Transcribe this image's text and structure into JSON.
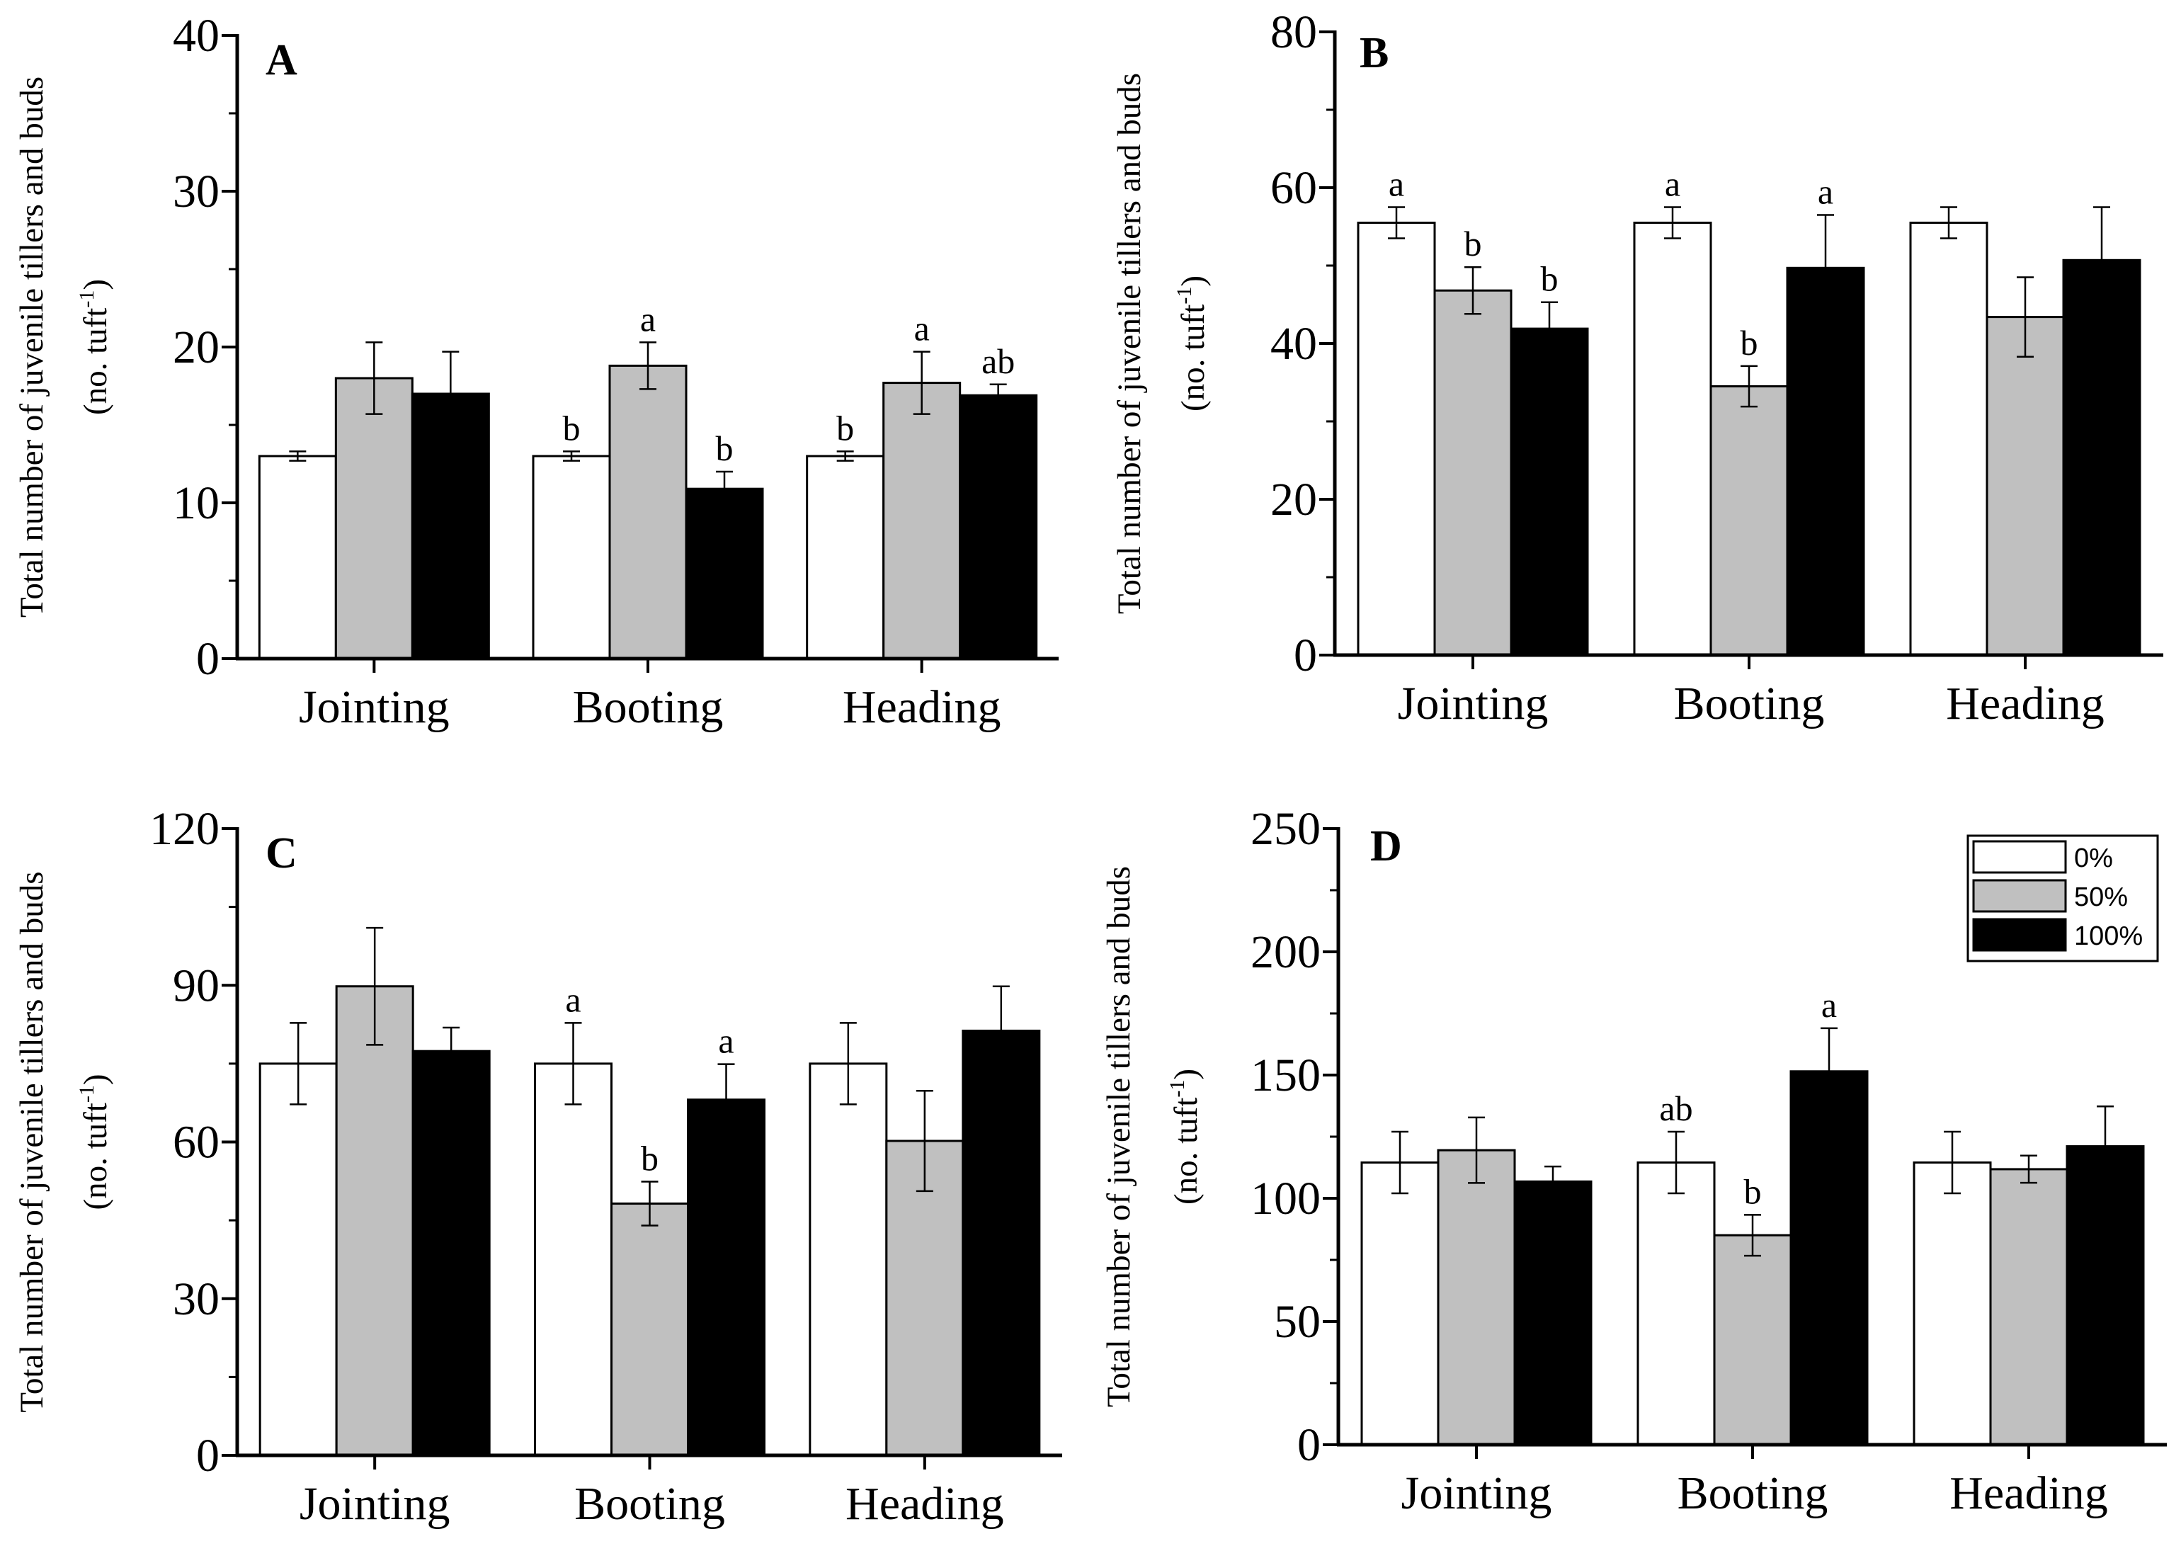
{
  "colors": {
    "series_0": "#ffffff",
    "series_50": "#c0c0c0",
    "series_100": "#000000",
    "axis": "#000000"
  },
  "legend": {
    "entries": [
      "0%",
      "50%",
      "100%"
    ]
  },
  "chart_data": [
    {
      "panel": "A",
      "type": "bar",
      "title": "A",
      "ylabel_line1": "Total number of juvenile tillers and buds",
      "ylabel_line2": "(no. tuft",
      "ylabel_sup": "-1",
      "ylabel_close": ")",
      "categories": [
        "Jointing",
        "Booting",
        "Heading"
      ],
      "ylim": [
        0,
        40
      ],
      "yticks": [
        0,
        10,
        20,
        30,
        40
      ],
      "series": [
        {
          "name": "0%",
          "values": [
            13.0,
            13.0,
            13.0
          ],
          "errors": [
            0.3,
            0.3,
            0.3
          ],
          "labels": [
            "",
            "b",
            "b"
          ]
        },
        {
          "name": "50%",
          "values": [
            18.0,
            18.8,
            17.7
          ],
          "errors": [
            2.3,
            1.5,
            2.0
          ],
          "labels": [
            "",
            "a",
            "a"
          ]
        },
        {
          "name": "100%",
          "values": [
            17.0,
            10.9,
            16.9
          ],
          "errors": [
            2.7,
            1.1,
            0.7
          ],
          "labels": [
            "",
            "b",
            "ab"
          ]
        }
      ]
    },
    {
      "panel": "B",
      "type": "bar",
      "title": "B",
      "ylabel_line1": "Total number of juvenile tillers and buds",
      "ylabel_line2": "(no. tuft",
      "ylabel_sup": "-1",
      "ylabel_close": ")",
      "categories": [
        "Jointing",
        "Booting",
        "Heading"
      ],
      "ylim": [
        0,
        80
      ],
      "yticks": [
        0,
        20,
        40,
        60,
        80
      ],
      "series": [
        {
          "name": "0%",
          "values": [
            55.5,
            55.5,
            55.5
          ],
          "errors": [
            2.0,
            2.0,
            2.0
          ],
          "labels": [
            "a",
            "a",
            ""
          ]
        },
        {
          "name": "50%",
          "values": [
            46.8,
            34.5,
            43.4
          ],
          "errors": [
            3.0,
            2.6,
            5.1
          ],
          "labels": [
            "b",
            "b",
            ""
          ]
        },
        {
          "name": "100%",
          "values": [
            41.9,
            49.7,
            50.7
          ],
          "errors": [
            3.4,
            6.8,
            6.8
          ],
          "labels": [
            "b",
            "a",
            ""
          ]
        }
      ]
    },
    {
      "panel": "C",
      "type": "bar",
      "title": "C",
      "ylabel_line1": "Total number of juvenile tillers and buds",
      "ylabel_line2": "(no. tuft",
      "ylabel_sup": "-1",
      "ylabel_close": ")",
      "categories": [
        "Jointing",
        "Booting",
        "Heading"
      ],
      "ylim": [
        0,
        120
      ],
      "yticks": [
        0,
        30,
        60,
        90,
        120
      ],
      "series": [
        {
          "name": "0%",
          "values": [
            75.0,
            75.0,
            75.0
          ],
          "errors": [
            7.8,
            7.8,
            7.8
          ],
          "labels": [
            "",
            "a",
            ""
          ]
        },
        {
          "name": "50%",
          "values": [
            89.8,
            48.2,
            60.2
          ],
          "errors": [
            11.2,
            4.2,
            9.6
          ],
          "labels": [
            "",
            "b",
            ""
          ]
        },
        {
          "name": "100%",
          "values": [
            77.4,
            68.1,
            81.3
          ],
          "errors": [
            4.5,
            6.8,
            8.5
          ],
          "labels": [
            "",
            "a",
            ""
          ]
        }
      ]
    },
    {
      "panel": "D",
      "type": "bar",
      "title": "D",
      "ylabel_line1": "Total number of juvenile tillers and buds",
      "ylabel_line2": "(no. tuft",
      "ylabel_sup": "-1",
      "ylabel_close": ")",
      "categories": [
        "Jointing",
        "Booting",
        "Heading"
      ],
      "ylim": [
        0,
        250
      ],
      "yticks": [
        0,
        50,
        100,
        150,
        200,
        250
      ],
      "legend_position": "top-right",
      "series": [
        {
          "name": "0%",
          "values": [
            114.5,
            114.5,
            114.5
          ],
          "errors": [
            12.5,
            12.5,
            12.5
          ],
          "labels": [
            "",
            "ab",
            ""
          ]
        },
        {
          "name": "50%",
          "values": [
            119.5,
            85.0,
            111.8
          ],
          "errors": [
            13.3,
            8.3,
            5.5
          ],
          "labels": [
            "",
            "b",
            ""
          ]
        },
        {
          "name": "100%",
          "values": [
            106.8,
            151.5,
            121.1
          ],
          "errors": [
            6.1,
            17.5,
            16.2
          ],
          "labels": [
            "",
            "a",
            ""
          ]
        }
      ]
    }
  ]
}
